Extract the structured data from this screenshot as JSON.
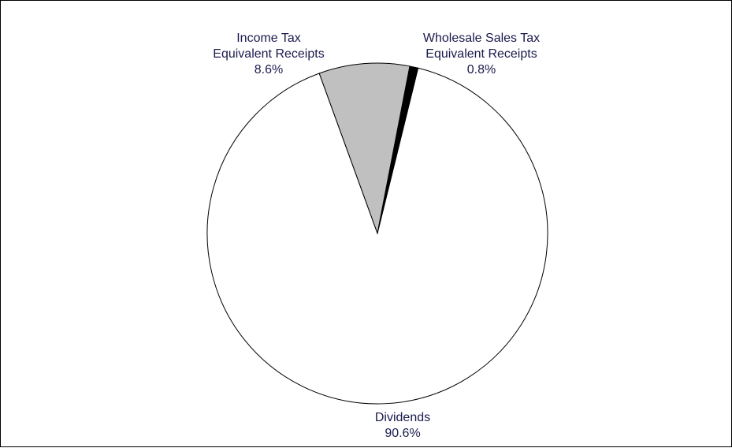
{
  "chart_data": {
    "type": "pie",
    "title": "",
    "slices": [
      {
        "label_lines": [
          "Income Tax",
          "Equivalent Receipts"
        ],
        "percent_label": "8.6%",
        "value": 8.6,
        "color": "#c0c0c0"
      },
      {
        "label_lines": [
          "Wholesale Sales Tax",
          "Equivalent Receipts"
        ],
        "percent_label": "0.8%",
        "value": 0.8,
        "color": "#000000"
      },
      {
        "label_lines": [
          "Dividends"
        ],
        "percent_label": "90.6%",
        "value": 90.6,
        "color": "#ffffff"
      }
    ],
    "start_angle_deg": -20.0,
    "direction": "clockwise",
    "legend": "none",
    "label_color": "#1a1a4e",
    "slice_border_color": "#000000"
  }
}
